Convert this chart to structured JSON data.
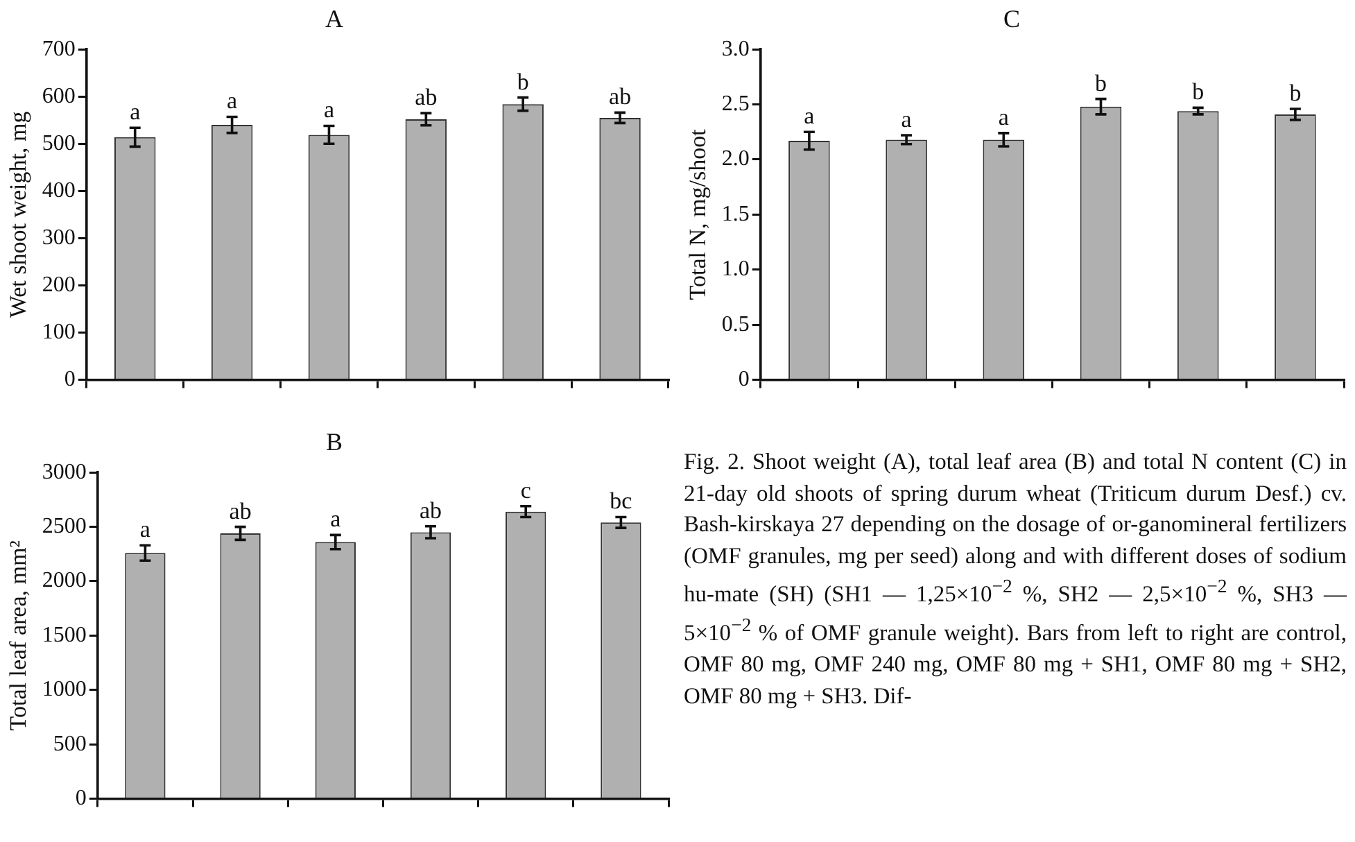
{
  "chart_data": [
    {
      "type": "bar",
      "title": "A",
      "ylabel": "Wet shoot weight, mg",
      "categories": [
        null,
        null,
        null,
        null,
        null,
        null
      ],
      "color": "#b0b0b0",
      "values": [
        514,
        540,
        519,
        552,
        584,
        555
      ],
      "errors": [
        20,
        17,
        19,
        13,
        14,
        11
      ],
      "value_labels": [
        "a",
        "a",
        "a",
        "ab",
        "b",
        "ab"
      ],
      "ylim": [
        0,
        700
      ],
      "yticks": [
        0,
        100,
        200,
        300,
        400,
        500,
        600,
        700
      ],
      "grid": false,
      "legend": false
    },
    {
      "type": "bar",
      "title": "C",
      "ylabel": "Total N, mg/shoot",
      "categories": [
        null,
        null,
        null,
        null,
        null,
        null
      ],
      "color": "#b0b0b0",
      "values": [
        2.17,
        2.18,
        2.18,
        2.48,
        2.44,
        2.41
      ],
      "errors": [
        0.08,
        0.04,
        0.06,
        0.07,
        0.03,
        0.05
      ],
      "value_labels": [
        "a",
        "a",
        "a",
        "b",
        "b",
        "b"
      ],
      "ylim": [
        0,
        3.0
      ],
      "yticks": [
        0,
        {
          "value": 0.5,
          "label": "0.5"
        },
        {
          "value": 1,
          "label": "1.0"
        },
        {
          "value": 1.5,
          "label": "1.5"
        },
        {
          "value": 2,
          "label": "2.0"
        },
        {
          "value": 2.5,
          "label": "2.5"
        },
        {
          "value": 3,
          "label": "3.0"
        }
      ],
      "grid": false,
      "legend": false
    },
    {
      "type": "bar",
      "title": "B",
      "ylabel": "Total leaf area, mm²",
      "categories": [
        null,
        null,
        null,
        null,
        null,
        null
      ],
      "color": "#b0b0b0",
      "values": [
        2260,
        2440,
        2360,
        2450,
        2640,
        2540
      ],
      "errors": [
        70,
        60,
        65,
        55,
        50,
        50
      ],
      "value_labels": [
        "a",
        "ab",
        "a",
        "ab",
        "c",
        "bc"
      ],
      "ylim": [
        0,
        3000
      ],
      "yticks": [
        0,
        500,
        1000,
        1500,
        2000,
        2500,
        3000
      ],
      "grid": false,
      "legend": false
    },
    {
      "type": "other",
      "annotations": [
        "Fig. 2. Shoot weight (A), total leaf area (B) and total N content (C) in 21-day old shoots of spring durum wheat (Triticum durum Desf.) cv. Bash-kirskaya 27 depending on the dosage of or-ganomineral fertilizers (OMF granules, mg per seed) along and with different doses of sodium hu-mate (SH) (SH1 — 1,25×10$^{−2}$ %, SH2 — 2,5×10$^{−2}$ %, SH3 — 5×10$^{−2}$ % of OMF granule weight). Bars from left to right are control, OMF 80 mg, OMF 240 mg, OMF 80 mg + SH1, OMF 80 mg + SH2, OMF 80 mg + SH3. Dif-"
      ]
    }
  ]
}
